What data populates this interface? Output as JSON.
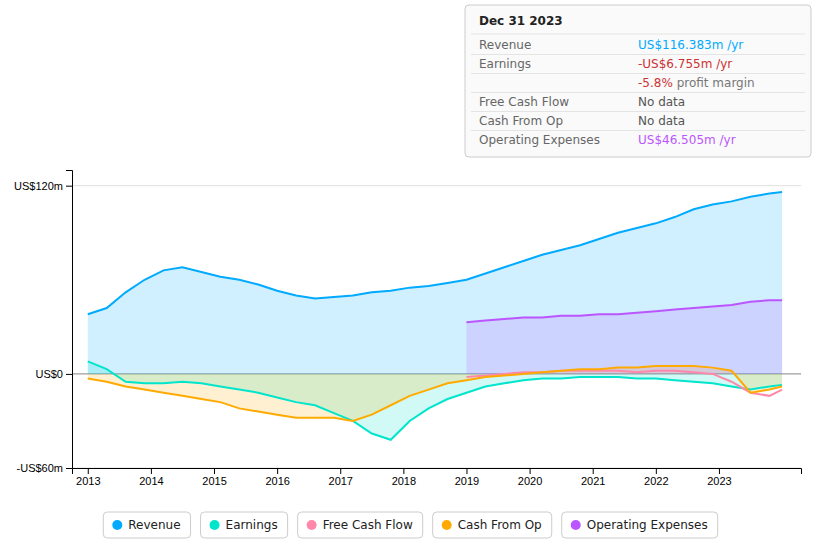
{
  "chart_data": {
    "type": "line",
    "series": [
      {
        "name": "Revenue",
        "type": "area",
        "color": "#00aaff",
        "x": [
          2013.0,
          2013.3,
          2013.6,
          2013.9,
          2014.2,
          2014.5,
          2014.8,
          2015.1,
          2015.4,
          2015.7,
          2016.0,
          2016.3,
          2016.6,
          2016.9,
          2017.2,
          2017.5,
          2017.8,
          2018.1,
          2018.4,
          2018.7,
          2019.0,
          2019.3,
          2019.6,
          2019.9,
          2020.2,
          2020.5,
          2020.8,
          2021.1,
          2021.4,
          2021.7,
          2022.0,
          2022.3,
          2022.6,
          2022.9,
          2023.2,
          2023.5,
          2023.8,
          2024.0
        ],
        "values": [
          38,
          42,
          52,
          60,
          66,
          68,
          65,
          62,
          60,
          57,
          53,
          50,
          48,
          49,
          50,
          52,
          53,
          55,
          56,
          58,
          60,
          64,
          68,
          72,
          76,
          79,
          82,
          86,
          90,
          93,
          96,
          100,
          105,
          108,
          110,
          113,
          115,
          116
        ]
      },
      {
        "name": "Earnings",
        "type": "area",
        "color": "#00e5cc",
        "x": [
          2013.0,
          2013.3,
          2013.6,
          2013.9,
          2014.2,
          2014.5,
          2014.8,
          2015.1,
          2015.4,
          2015.7,
          2016.0,
          2016.3,
          2016.6,
          2016.9,
          2017.2,
          2017.5,
          2017.8,
          2018.1,
          2018.4,
          2018.7,
          2019.0,
          2019.3,
          2019.6,
          2019.9,
          2020.2,
          2020.5,
          2020.8,
          2021.1,
          2021.4,
          2021.7,
          2022.0,
          2022.3,
          2022.6,
          2022.9,
          2023.2,
          2023.5,
          2023.8,
          2024.0
        ],
        "values": [
          8,
          3,
          -5,
          -6,
          -6,
          -5,
          -6,
          -8,
          -10,
          -12,
          -15,
          -18,
          -20,
          -25,
          -30,
          -38,
          -42,
          -30,
          -22,
          -16,
          -12,
          -8,
          -6,
          -4,
          -3,
          -3,
          -2,
          -2,
          -2,
          -3,
          -3,
          -4,
          -5,
          -6,
          -8,
          -10,
          -8,
          -7
        ]
      },
      {
        "name": "Free Cash Flow",
        "type": "line",
        "color": "#ff88aa",
        "x": [
          2019.0,
          2019.3,
          2019.6,
          2019.9,
          2020.2,
          2020.5,
          2020.8,
          2021.1,
          2021.4,
          2021.7,
          2022.0,
          2022.3,
          2022.6,
          2022.9,
          2023.2,
          2023.5,
          2023.8,
          2024.0
        ],
        "values": [
          -2,
          -1,
          0,
          1,
          1,
          2,
          2,
          2,
          2,
          1,
          2,
          2,
          1,
          0,
          -5,
          -12,
          -14,
          -10
        ]
      },
      {
        "name": "Cash From Op",
        "type": "area",
        "color": "#ffaa00",
        "x": [
          2013.0,
          2013.3,
          2013.6,
          2013.9,
          2014.2,
          2014.5,
          2014.8,
          2015.1,
          2015.4,
          2015.7,
          2016.0,
          2016.3,
          2016.6,
          2016.9,
          2017.2,
          2017.5,
          2017.8,
          2018.1,
          2018.4,
          2018.7,
          2019.0,
          2019.3,
          2019.6,
          2019.9,
          2020.2,
          2020.5,
          2020.8,
          2021.1,
          2021.4,
          2021.7,
          2022.0,
          2022.3,
          2022.6,
          2022.9,
          2023.2,
          2023.5,
          2023.8,
          2024.0
        ],
        "values": [
          -3,
          -5,
          -8,
          -10,
          -12,
          -14,
          -16,
          -18,
          -22,
          -24,
          -26,
          -28,
          -28,
          -28,
          -30,
          -26,
          -20,
          -14,
          -10,
          -6,
          -4,
          -2,
          -1,
          0,
          1,
          2,
          3,
          3,
          4,
          4,
          5,
          5,
          5,
          4,
          2,
          -12,
          -10,
          -8
        ]
      },
      {
        "name": "Operating Expenses",
        "type": "area",
        "color": "#bb55ff",
        "x": [
          2019.0,
          2019.3,
          2019.6,
          2019.9,
          2020.2,
          2020.5,
          2020.8,
          2021.1,
          2021.4,
          2021.7,
          2022.0,
          2022.3,
          2022.6,
          2022.9,
          2023.2,
          2023.5,
          2023.8,
          2024.0
        ],
        "values": [
          33,
          34,
          35,
          36,
          36,
          37,
          37,
          38,
          38,
          39,
          40,
          41,
          42,
          43,
          44,
          46,
          47,
          47
        ]
      }
    ],
    "xlim": [
      2012.75,
      2024.3
    ],
    "xticks": [
      2013,
      2014,
      2015,
      2016,
      2017,
      2018,
      2019,
      2020,
      2021,
      2022,
      2023
    ],
    "ylim": [
      -60,
      130
    ],
    "yticks": [
      {
        "value": -60,
        "label": "-US$60m"
      },
      {
        "value": 0,
        "label": "US$0"
      },
      {
        "value": 120,
        "label": "US$120m"
      }
    ],
    "grid": true,
    "legend": "bottom",
    "annotations": [
      {
        "text": "Dec 31 2023"
      },
      {
        "label": "Revenue",
        "text": "US$116.383m /yr",
        "color": "#00aaff"
      },
      {
        "label": "Earnings",
        "text": "-US$6.755m /yr",
        "color": "#cc3333"
      },
      {
        "text": "-5.8%",
        "suffix": " profit margin",
        "color": "#cc3333"
      },
      {
        "label": "Free Cash Flow",
        "text": "No data",
        "color": "#555555"
      },
      {
        "label": "Cash From Op",
        "text": "No data",
        "color": "#555555"
      },
      {
        "label": "Operating Expenses",
        "text": "US$46.505m /yr",
        "color": "#bb55ff"
      }
    ]
  }
}
